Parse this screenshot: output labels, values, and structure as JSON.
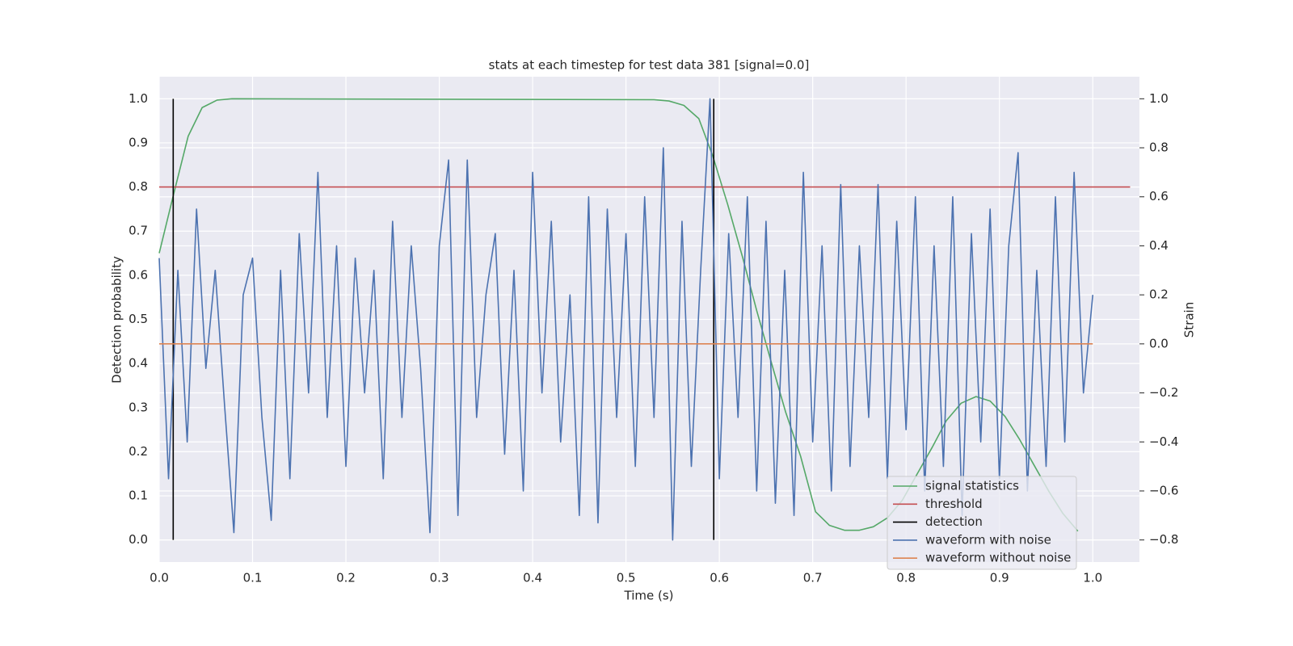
{
  "chart_data": {
    "type": "line",
    "title": "stats at each timestep for test data 381 [signal=0.0]",
    "x_label": "Time (s)",
    "y_label": "Detection probability",
    "y2_label": "Strain",
    "xlim": [
      0,
      1.05
    ],
    "ylim": [
      -0.05,
      1.05
    ],
    "y2lim": [
      -0.89,
      1.09
    ],
    "xticks": [
      {
        "value": 0,
        "label": "0.0"
      },
      0.1,
      0.2,
      0.3,
      0.4,
      0.5,
      0.6,
      0.7,
      0.8,
      0.9,
      {
        "value": 1,
        "label": "1.0"
      }
    ],
    "yticks": [
      {
        "value": 0,
        "label": "0.0"
      },
      0.1,
      0.2,
      0.3,
      0.4,
      0.5,
      0.6,
      0.7,
      0.8,
      0.9,
      {
        "value": 1,
        "label": "1.0"
      }
    ],
    "y2ticks": [
      {
        "value": -0.8,
        "label": "−0.8"
      },
      {
        "value": -0.6,
        "label": "−0.6"
      },
      {
        "value": -0.4,
        "label": "−0.4"
      },
      {
        "value": -0.2,
        "label": "−0.2"
      },
      {
        "value": 0,
        "label": "0.0"
      },
      0.2,
      0.4,
      0.6,
      0.8,
      {
        "value": 1,
        "label": "1.0"
      }
    ],
    "grid": true,
    "legend": "lower right",
    "series": [
      {
        "name": "signal statistics",
        "color": "#55a868",
        "x": [
          0,
          0.015,
          0.031,
          0.046,
          0.062,
          0.078,
          0.53,
          0.546,
          0.562,
          0.578,
          0.593,
          0.609,
          0.625,
          0.64,
          0.656,
          0.671,
          0.687,
          0.703,
          0.718,
          0.734,
          0.75,
          0.765,
          0.78,
          0.796,
          0.812,
          0.828,
          0.843,
          0.859,
          0.875,
          0.89,
          0.906,
          0.921,
          0.937,
          0.953,
          0.968,
          0.984
        ],
        "values": [
          0.65,
          0.78,
          0.915,
          0.98,
          0.997,
          1.0,
          0.998,
          0.995,
          0.985,
          0.955,
          0.87,
          0.76,
          0.64,
          0.52,
          0.4,
          0.29,
          0.19,
          0.064,
          0.033,
          0.022,
          0.022,
          0.03,
          0.05,
          0.09,
          0.15,
          0.21,
          0.27,
          0.31,
          0.325,
          0.315,
          0.28,
          0.23,
          0.17,
          0.11,
          0.06,
          0.02
        ]
      },
      {
        "name": "threshold",
        "color": "#c44e52",
        "x": [
          0,
          1.04
        ],
        "values": [
          0.8,
          0.8
        ]
      },
      {
        "name": "detection",
        "color": "#000000",
        "x": [
          0.015,
          0.015,
          null,
          0.594,
          0.594
        ],
        "values": [
          0,
          1,
          null,
          0,
          1
        ]
      },
      {
        "name": "waveform with noise",
        "color": "#4c72b0",
        "axis": "y2",
        "x": [
          0,
          0.01,
          0.02,
          0.03,
          0.04,
          0.05,
          0.06,
          0.07,
          0.08,
          0.09,
          0.1,
          0.11,
          0.12,
          0.13,
          0.14,
          0.15,
          0.16,
          0.17,
          0.18,
          0.19,
          0.2,
          0.21,
          0.22,
          0.23,
          0.24,
          0.25,
          0.26,
          0.27,
          0.28,
          0.29,
          0.3,
          0.31,
          0.32,
          0.33,
          0.34,
          0.35,
          0.36,
          0.37,
          0.38,
          0.39,
          0.4,
          0.41,
          0.42,
          0.43,
          0.44,
          0.45,
          0.46,
          0.47,
          0.48,
          0.49,
          0.5,
          0.51,
          0.52,
          0.53,
          0.54,
          0.55,
          0.56,
          0.57,
          0.58,
          0.59,
          0.6,
          0.61,
          0.62,
          0.63,
          0.64,
          0.65,
          0.66,
          0.67,
          0.68,
          0.69,
          0.7,
          0.71,
          0.72,
          0.73,
          0.74,
          0.75,
          0.76,
          0.77,
          0.78,
          0.79,
          0.8,
          0.81,
          0.82,
          0.83,
          0.84,
          0.85,
          0.86,
          0.87,
          0.88,
          0.89,
          0.9,
          0.91,
          0.92,
          0.93,
          0.94,
          0.95,
          0.96,
          0.97,
          0.98,
          0.99,
          1.0
        ],
        "values": [
          0.35,
          -0.55,
          0.3,
          -0.4,
          0.55,
          -0.1,
          0.3,
          -0.25,
          -0.77,
          0.2,
          0.35,
          -0.3,
          -0.72,
          0.3,
          -0.55,
          0.45,
          -0.2,
          0.7,
          -0.3,
          0.4,
          -0.5,
          0.35,
          -0.2,
          0.3,
          -0.55,
          0.5,
          -0.3,
          0.4,
          -0.1,
          -0.77,
          0.4,
          0.75,
          -0.7,
          0.75,
          -0.3,
          0.2,
          0.45,
          -0.45,
          0.3,
          -0.6,
          0.7,
          -0.2,
          0.5,
          -0.4,
          0.2,
          -0.7,
          0.6,
          -0.73,
          0.55,
          -0.3,
          0.45,
          -0.5,
          0.6,
          -0.3,
          0.8,
          -0.8,
          0.5,
          -0.5,
          0.3,
          1.0,
          -0.55,
          0.45,
          -0.3,
          0.6,
          -0.6,
          0.5,
          -0.65,
          0.3,
          -0.7,
          0.7,
          -0.4,
          0.4,
          -0.6,
          0.65,
          -0.5,
          0.4,
          -0.3,
          0.65,
          -0.55,
          0.5,
          -0.35,
          0.6,
          -0.6,
          0.4,
          -0.5,
          0.6,
          -0.7,
          0.45,
          -0.4,
          0.55,
          -0.55,
          0.4,
          0.78,
          -0.6,
          0.3,
          -0.5,
          0.6,
          -0.4,
          0.7,
          -0.2,
          0.2
        ]
      },
      {
        "name": "waveform without noise",
        "color": "#dd8452",
        "axis": "y2",
        "x": [
          0,
          1.0
        ],
        "values": [
          0,
          0
        ]
      }
    ]
  }
}
